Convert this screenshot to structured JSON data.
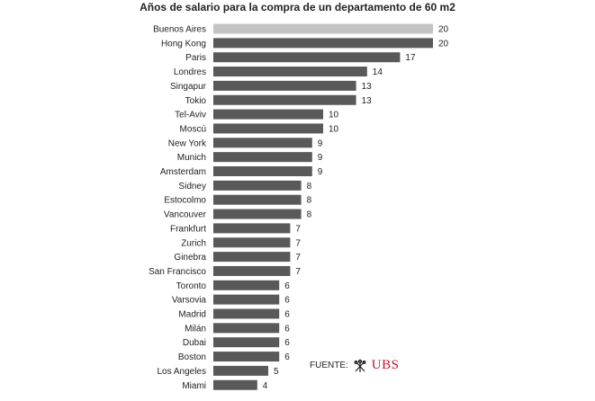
{
  "colors": {
    "highlight_bar": "#c4c4c4",
    "bar": "#595959",
    "brand": "#c8102e"
  },
  "chart_data": {
    "type": "bar",
    "orientation": "horizontal",
    "title": "Años de salario para la compra de un departamento de 60 m2",
    "categories": [
      "Buenos Aires",
      "Hong Kong",
      "Paris",
      "Londres",
      "Singapur",
      "Tokio",
      "Tel-Aviv",
      "Moscú",
      "New York",
      "Munich",
      "Amsterdam",
      "Sidney",
      "Estocolmo",
      "Vancouver",
      "Frankfurt",
      "Zurich",
      "Ginebra",
      "San Francisco",
      "Toronto",
      "Varsovia",
      "Madrid",
      "Milán",
      "Dubai",
      "Boston",
      "Los Angeles",
      "Miami"
    ],
    "values": [
      20,
      20,
      17,
      14,
      13,
      13,
      10,
      10,
      9,
      9,
      9,
      8,
      8,
      8,
      7,
      7,
      7,
      7,
      6,
      6,
      6,
      6,
      6,
      6,
      5,
      4
    ],
    "highlighted_category": "Buenos Aires",
    "xlim": [
      0,
      20
    ],
    "grid": false,
    "legend": "none"
  },
  "source": {
    "label": "FUENTE:",
    "logo_text": "UBS",
    "logo_icon": "ubs-keys-icon"
  }
}
